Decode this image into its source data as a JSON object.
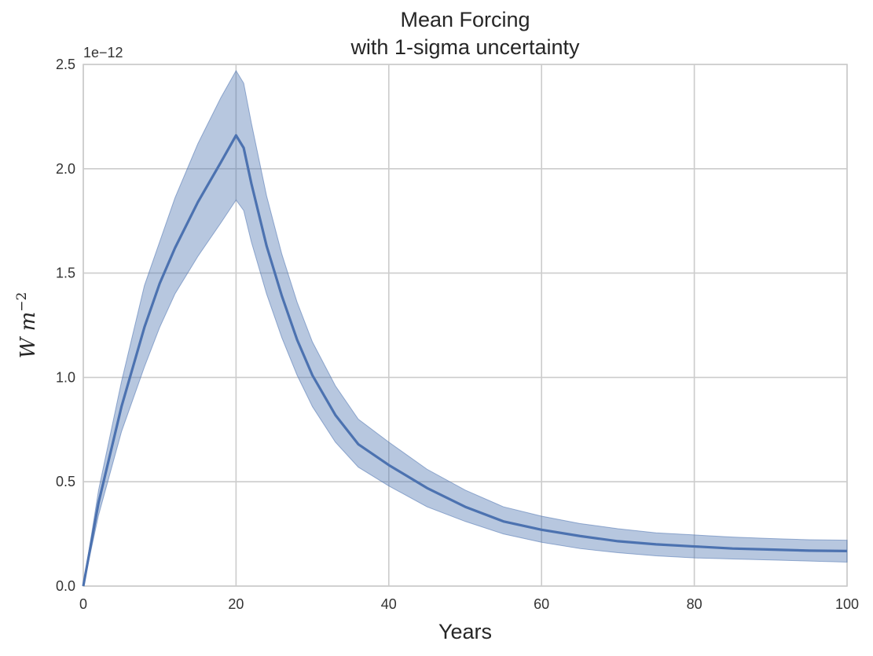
{
  "chart_data": {
    "type": "line",
    "title": "Mean Forcing",
    "subtitle": "with 1-sigma uncertainty",
    "xlabel": "Years",
    "ylabel": "W m",
    "ylabel_exponent": "−2",
    "y_offset_label": "1e−12",
    "xlim": [
      0,
      100
    ],
    "ylim": [
      0,
      2.5
    ],
    "x_ticks": [
      0,
      20,
      40,
      60,
      80,
      100
    ],
    "x_tick_labels": [
      "0",
      "20",
      "40",
      "60",
      "80",
      "100"
    ],
    "y_ticks": [
      0,
      0.5,
      1.0,
      1.5,
      2.0,
      2.5
    ],
    "y_tick_labels": [
      "0.0",
      "0.5",
      "1.0",
      "1.5",
      "2.0",
      "2.5"
    ],
    "grid": true,
    "colors": {
      "line": "#4c72b0",
      "band": "#4c72b0",
      "grid": "#cccccc"
    },
    "series": [
      {
        "x": [
          0,
          2,
          5,
          8,
          10,
          12,
          15,
          18,
          20,
          21,
          22,
          24,
          26,
          28,
          30,
          33,
          36,
          40,
          45,
          50,
          55,
          60,
          65,
          70,
          75,
          80,
          85,
          90,
          95,
          100
        ],
        "mean": [
          0,
          0.4,
          0.86,
          1.24,
          1.45,
          1.62,
          1.84,
          2.03,
          2.16,
          2.1,
          1.93,
          1.63,
          1.39,
          1.18,
          1.01,
          0.82,
          0.68,
          0.58,
          0.47,
          0.38,
          0.31,
          0.27,
          0.24,
          0.215,
          0.2,
          0.19,
          0.18,
          0.175,
          0.17,
          0.168
        ],
        "upper": [
          0,
          0.46,
          0.98,
          1.44,
          1.65,
          1.86,
          2.12,
          2.34,
          2.47,
          2.41,
          2.22,
          1.87,
          1.59,
          1.36,
          1.17,
          0.96,
          0.8,
          0.69,
          0.56,
          0.46,
          0.38,
          0.335,
          0.3,
          0.275,
          0.255,
          0.245,
          0.235,
          0.228,
          0.222,
          0.22
        ],
        "lower": [
          0,
          0.34,
          0.74,
          1.05,
          1.24,
          1.4,
          1.58,
          1.74,
          1.85,
          1.8,
          1.65,
          1.4,
          1.19,
          1.01,
          0.86,
          0.69,
          0.57,
          0.48,
          0.38,
          0.31,
          0.25,
          0.21,
          0.18,
          0.16,
          0.145,
          0.135,
          0.13,
          0.125,
          0.12,
          0.115
        ]
      }
    ]
  }
}
